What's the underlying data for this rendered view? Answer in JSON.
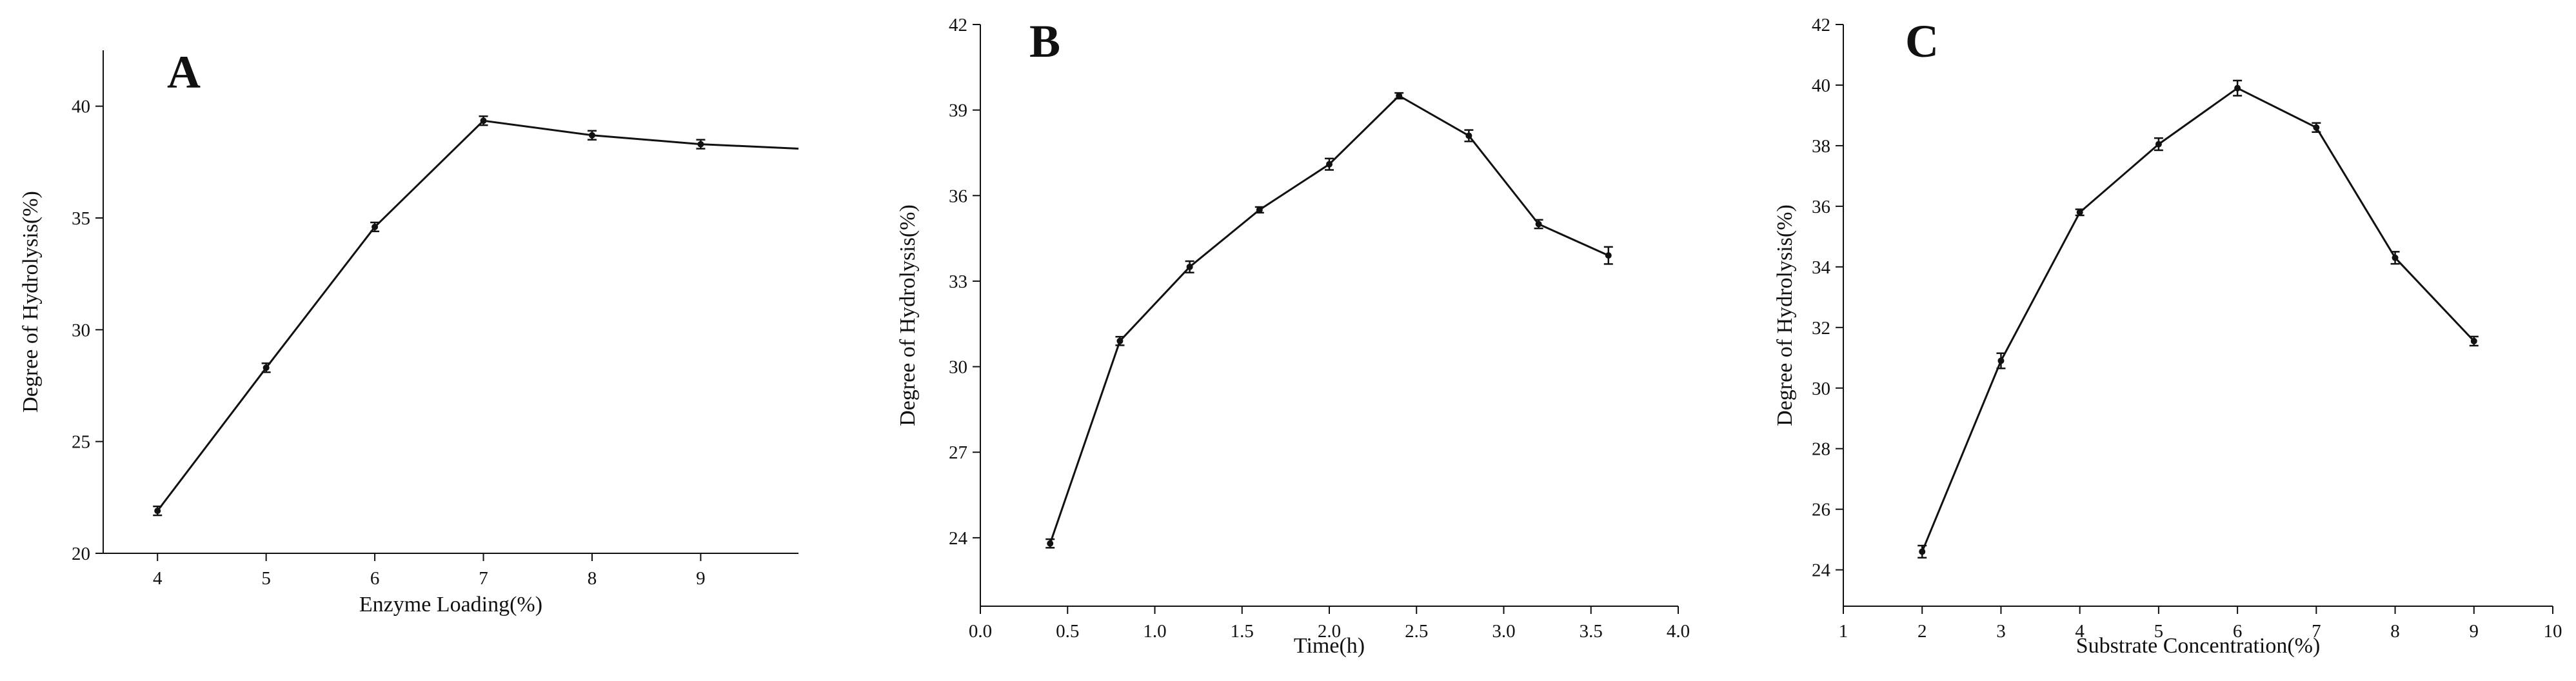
{
  "chart_data": [
    {
      "type": "line",
      "panel_label": "A",
      "title": "",
      "xlabel": "Enzyme Loading(%)",
      "ylabel": "Degree of Hydrolysis(%)",
      "xlim": [
        3.5,
        9.9
      ],
      "ylim": [
        20,
        42.5
      ],
      "x_ticks": [
        4,
        5,
        6,
        7,
        8,
        9
      ],
      "y_ticks": [
        20,
        25,
        30,
        35,
        40
      ],
      "series": [
        {
          "name": "Degree of Hydrolysis",
          "x": [
            4,
            5,
            6,
            7,
            8,
            9,
            9.9
          ],
          "values": [
            21.9,
            28.3,
            34.6,
            39.35,
            38.7,
            38.3,
            38.1
          ],
          "error": [
            0.2,
            0.2,
            0.2,
            0.2,
            0.2,
            0.2,
            0
          ]
        }
      ]
    },
    {
      "type": "line",
      "panel_label": "B",
      "title": "",
      "xlabel": "Time(h)",
      "ylabel": "Degree of Hydrolysis(%)",
      "xlim": [
        0,
        4.0
      ],
      "ylim": [
        21.6,
        42
      ],
      "x_ticks": [
        0.0,
        0.5,
        1.0,
        1.5,
        2.0,
        2.5,
        3.0,
        3.5,
        4.0
      ],
      "y_ticks": [
        24,
        27,
        30,
        33,
        36,
        39,
        42
      ],
      "series": [
        {
          "name": "Degree of Hydrolysis",
          "x": [
            0.4,
            0.8,
            1.2,
            1.6,
            2.0,
            2.4,
            2.8,
            3.2,
            3.6
          ],
          "values": [
            23.8,
            30.9,
            33.5,
            35.5,
            37.1,
            39.5,
            38.1,
            35.0,
            33.9
          ],
          "error": [
            0.15,
            0.15,
            0.2,
            0.1,
            0.2,
            0.1,
            0.2,
            0.15,
            0.3
          ]
        }
      ]
    },
    {
      "type": "line",
      "panel_label": "C",
      "title": "",
      "xlabel": "Substrate Concentration(%)",
      "ylabel": "Degree of Hydrolysis(%)",
      "xlim": [
        1,
        10
      ],
      "ylim": [
        22.8,
        42
      ],
      "x_ticks": [
        1,
        2,
        3,
        4,
        5,
        6,
        7,
        8,
        9,
        10
      ],
      "y_ticks": [
        24,
        26,
        28,
        30,
        32,
        34,
        36,
        38,
        40,
        42
      ],
      "series": [
        {
          "name": "Degree of Hydrolysis",
          "x": [
            2,
            3,
            4,
            5,
            6,
            7,
            8,
            9
          ],
          "values": [
            24.6,
            30.9,
            35.8,
            38.05,
            39.9,
            38.6,
            34.3,
            31.55
          ],
          "error": [
            0.2,
            0.25,
            0.1,
            0.2,
            0.25,
            0.15,
            0.2,
            0.15
          ]
        }
      ]
    }
  ]
}
